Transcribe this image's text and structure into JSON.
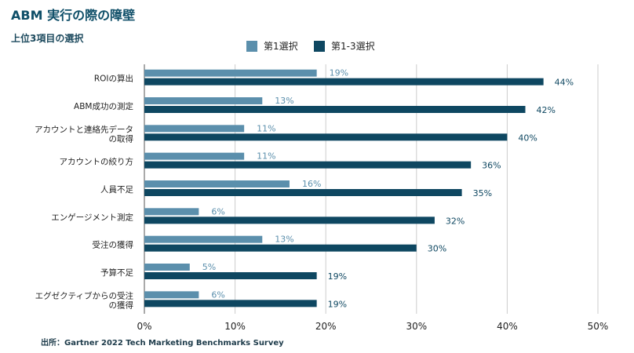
{
  "title": "ABM 実行の際の障壁",
  "subtitle": "上位3項目の選択",
  "source": "出所：Gartner 2022 Tech Marketing Benchmarks Survey",
  "colors": {
    "series1": "#5b8fac",
    "series2": "#0e4761",
    "grid": "#cccccc",
    "axis": "#555555"
  },
  "chart_data": {
    "type": "bar",
    "orientation": "horizontal",
    "categories": [
      [
        "ROIの算出"
      ],
      [
        "ABM成功の測定"
      ],
      [
        "アカウントと連絡先データ",
        "の取得"
      ],
      [
        "アカウントの絞り方"
      ],
      [
        "人員不足"
      ],
      [
        "エンゲージメント測定"
      ],
      [
        "受注の獲得"
      ],
      [
        "予算不足"
      ],
      [
        "エグゼクティブからの受注",
        "の獲得"
      ]
    ],
    "series": [
      {
        "name": "第1選択",
        "values": [
          19,
          13,
          11,
          11,
          16,
          6,
          13,
          5,
          6
        ],
        "labels": [
          "19%",
          "13%",
          "11%",
          "11%",
          "16%",
          "6%",
          "13%",
          "5%",
          "6%"
        ]
      },
      {
        "name": "第1-3選択",
        "values": [
          44,
          42,
          40,
          36,
          35,
          32,
          30,
          19,
          19
        ],
        "labels": [
          "44%",
          "42%",
          "40%",
          "36%",
          "35%",
          "32%",
          "30%",
          "19%",
          "19%"
        ]
      }
    ],
    "xlim": [
      0,
      50
    ],
    "xticks": [
      "0%",
      "10%",
      "20%",
      "30%",
      "40%",
      "50%"
    ],
    "grid": true,
    "legend_position": "top-center"
  }
}
